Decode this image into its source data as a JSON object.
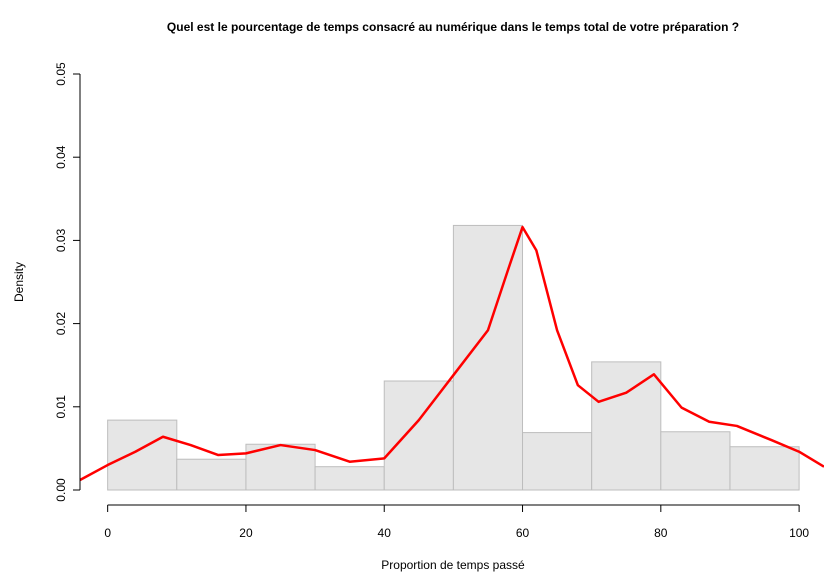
{
  "chart_data": {
    "type": "histogram",
    "title": "Quel est le pourcentage de temps consacré au numérique dans le temps total de votre préparation ?",
    "x_label": "Proportion de temps passé",
    "y_label": "Density",
    "bins": [
      0,
      10,
      20,
      30,
      40,
      50,
      60,
      70,
      80,
      90,
      100
    ],
    "values": [
      0.0084,
      0.0037,
      0.0055,
      0.0028,
      0.0131,
      0.0318,
      0.0069,
      0.0154,
      0.007,
      0.0052
    ],
    "color": "#e6e6e6",
    "edge_color": "#bdbdbd",
    "density": {
      "color": "#ff0000",
      "x": [
        -4,
        0,
        4,
        8,
        12,
        16,
        20,
        25,
        30,
        35,
        40,
        45,
        50,
        55,
        58,
        60,
        62,
        65,
        68,
        71,
        75,
        79,
        83,
        87,
        91,
        96,
        100,
        103.6
      ],
      "y": [
        0.0012,
        0.003,
        0.0046,
        0.0064,
        0.0054,
        0.0042,
        0.0044,
        0.0054,
        0.0048,
        0.0034,
        0.0038,
        0.0084,
        0.0138,
        0.0192,
        0.0267,
        0.0316,
        0.0288,
        0.0192,
        0.0126,
        0.0106,
        0.0117,
        0.0139,
        0.0099,
        0.0082,
        0.0077,
        0.006,
        0.0046,
        0.0028
      ]
    },
    "xlim": [
      -4,
      103.6
    ],
    "ylim": [
      0,
      0.05
    ],
    "xticks": [
      0,
      20,
      40,
      60,
      80,
      100
    ],
    "yticks": [
      {
        "value": 0,
        "label": "0.00"
      },
      0.01,
      0.02,
      0.03,
      0.04,
      0.05
    ]
  }
}
